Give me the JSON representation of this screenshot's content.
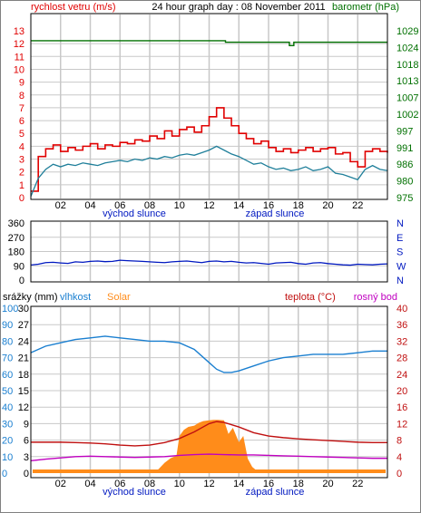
{
  "header": {
    "left_title": "rychlost vetru (m/s)",
    "center_title": "24 hour graph day : 08 November 2011",
    "right_title": "barometr (hPa)"
  },
  "colors": {
    "wind_gust": "#e00000",
    "wind_speed": "#1f7f9a",
    "pressure": "#007000",
    "direction": "#0018c0",
    "humidity": "#1a7fd0",
    "solar": "#ff8c1a",
    "temperature": "#c01010",
    "dewpoint": "#c000c0",
    "grid": "#c8c8c8",
    "axis_left_top": "#e00000",
    "axis_right_top": "#007000",
    "axis_left_bottom": "#1a7fd0",
    "axis_right_bottom": "#c01010"
  },
  "x_axis": {
    "hour_labels": [
      "02",
      "04",
      "06",
      "08",
      "10",
      "12",
      "14",
      "16",
      "18",
      "20",
      "22"
    ],
    "sunrise_label": "východ slunce",
    "sunset_label": "západ slunce"
  },
  "panel_bottom_header": {
    "rain_label": "srážky (mm)",
    "humidity_label": "vlhkost",
    "solar_label": "Solar",
    "temperature_label": "teplota (°C)",
    "dewpoint_label": "rosný bod"
  },
  "chart_data": [
    {
      "type": "line",
      "name": "wind-and-pressure",
      "xlabel": "",
      "xlim": [
        0,
        24
      ],
      "ylim_left": [
        0,
        13
      ],
      "ylim_right": [
        975,
        1029
      ],
      "left_ticks": [
        "0",
        "1",
        "2",
        "3",
        "4",
        "5",
        "6",
        "7",
        "8",
        "9",
        "10",
        "11",
        "12",
        "13"
      ],
      "right_ticks": [
        "975",
        "980",
        "986",
        "991",
        "997",
        "1002",
        "1007",
        "1013",
        "1018",
        "1024",
        "1029"
      ],
      "series": [
        {
          "key": "gust",
          "x": [
            0,
            0.5,
            1,
            1.5,
            2,
            2.5,
            3,
            3.5,
            4,
            4.5,
            5,
            5.5,
            6,
            6.5,
            7,
            7.5,
            8,
            8.5,
            9,
            9.5,
            10,
            10.5,
            11,
            11.5,
            12,
            12.5,
            13,
            13.5,
            14,
            14.5,
            15,
            15.5,
            16,
            16.5,
            17,
            17.5,
            18,
            18.5,
            19,
            19.5,
            20,
            20.5,
            21,
            21.5,
            22,
            22.5,
            23,
            23.5,
            24
          ],
          "values": [
            0.5,
            3.2,
            3.8,
            4.1,
            3.6,
            3.9,
            3.7,
            4.0,
            4.2,
            3.8,
            4.1,
            4.0,
            4.3,
            4.2,
            4.5,
            4.4,
            4.8,
            4.6,
            5.2,
            4.8,
            5.3,
            5.5,
            5.1,
            5.6,
            6.3,
            7.0,
            6.2,
            5.6,
            5.0,
            4.6,
            4.2,
            4.4,
            3.9,
            3.6,
            3.8,
            3.5,
            3.7,
            3.9,
            3.6,
            3.8,
            3.9,
            3.4,
            3.5,
            2.8,
            2.4,
            3.6,
            3.8,
            3.6,
            3.5
          ]
        },
        {
          "key": "speed",
          "x": [
            0,
            0.5,
            1,
            1.5,
            2,
            2.5,
            3,
            3.5,
            4,
            4.5,
            5,
            5.5,
            6,
            6.5,
            7,
            7.5,
            8,
            8.5,
            9,
            9.5,
            10,
            10.5,
            11,
            11.5,
            12,
            12.5,
            13,
            13.5,
            14,
            14.5,
            15,
            15.5,
            16,
            16.5,
            17,
            17.5,
            18,
            18.5,
            19,
            19.5,
            20,
            20.5,
            21,
            21.5,
            22,
            22.5,
            23,
            23.5,
            24
          ],
          "values": [
            0.1,
            1.5,
            2.2,
            2.6,
            2.4,
            2.6,
            2.5,
            2.7,
            2.6,
            2.5,
            2.7,
            2.8,
            2.9,
            2.8,
            3.0,
            2.9,
            3.1,
            3.0,
            3.2,
            3.1,
            3.3,
            3.4,
            3.3,
            3.5,
            3.7,
            4.0,
            3.7,
            3.4,
            3.2,
            2.9,
            2.6,
            2.7,
            2.4,
            2.2,
            2.3,
            2.1,
            2.2,
            2.4,
            2.1,
            2.2,
            2.4,
            1.9,
            1.8,
            1.6,
            1.4,
            2.2,
            2.5,
            2.2,
            2.1
          ]
        },
        {
          "key": "pressure",
          "x": [
            0,
            13,
            13.1,
            17.3,
            17.4,
            17.6,
            17.7,
            24
          ],
          "values": [
            1025.8,
            1025.8,
            1025.3,
            1025.3,
            1024.2,
            1024.2,
            1025.3,
            1025.3
          ]
        }
      ]
    },
    {
      "type": "scatter",
      "name": "wind-direction",
      "xlim": [
        0,
        24
      ],
      "ylim": [
        0,
        360
      ],
      "left_ticks": [
        "0",
        "90",
        "180",
        "270",
        "360"
      ],
      "right_labels": [
        "N",
        "W",
        "S",
        "E",
        "N"
      ],
      "series": [
        {
          "key": "direction",
          "x": [
            0,
            0.5,
            1,
            1.5,
            2,
            2.5,
            3,
            3.5,
            4,
            4.5,
            5,
            5.5,
            6,
            6.5,
            7,
            7.5,
            8,
            8.5,
            9,
            9.5,
            10,
            10.5,
            11,
            11.5,
            12,
            12.5,
            13,
            13.5,
            14,
            14.5,
            15,
            15.5,
            16,
            16.5,
            17,
            17.5,
            18,
            18.5,
            19,
            19.5,
            20,
            20.5,
            21,
            21.5,
            22,
            22.5,
            23,
            23.5,
            24
          ],
          "values": [
            95,
            100,
            110,
            112,
            108,
            105,
            115,
            112,
            118,
            120,
            116,
            118,
            125,
            122,
            120,
            118,
            115,
            112,
            110,
            115,
            118,
            120,
            115,
            110,
            118,
            120,
            115,
            118,
            112,
            108,
            110,
            105,
            100,
            108,
            110,
            112,
            104,
            100,
            108,
            110,
            104,
            100,
            96,
            94,
            100,
            98,
            96,
            100,
            102
          ]
        }
      ]
    },
    {
      "type": "line",
      "name": "rain-humidity-solar-temperature",
      "xlim": [
        0,
        24
      ],
      "ylim_left": [
        0,
        30
      ],
      "ylim_right": [
        0,
        40
      ],
      "left_ticks_rain": [
        "0",
        "3",
        "6",
        "9",
        "12",
        "15",
        "18",
        "21",
        "24",
        "27",
        "30"
      ],
      "left_ticks_humidity": [
        "0",
        "10",
        "20",
        "30",
        "40",
        "50",
        "60",
        "70",
        "80",
        "90",
        "100"
      ],
      "right_ticks": [
        "0",
        "4",
        "8",
        "12",
        "16",
        "20",
        "24",
        "28",
        "32",
        "36",
        "40"
      ],
      "series": [
        {
          "key": "humidity",
          "unit": "%",
          "x": [
            0,
            1,
            2,
            3,
            4,
            5,
            6,
            7,
            8,
            9,
            10,
            11,
            12,
            12.5,
            13,
            13.5,
            14,
            15,
            16,
            17,
            18,
            19,
            20,
            21,
            22,
            23,
            24
          ],
          "values": [
            73,
            77,
            79,
            81,
            82,
            83,
            82,
            81,
            80,
            80,
            79,
            75,
            67,
            63,
            61,
            61,
            62,
            65,
            68,
            70,
            71,
            72,
            72,
            72,
            73,
            74,
            74
          ]
        },
        {
          "key": "temperature",
          "unit": "°C",
          "x": [
            0,
            1,
            2,
            3,
            4,
            5,
            6,
            7,
            8,
            9,
            10,
            11,
            11.5,
            12,
            12.5,
            13,
            14,
            15,
            16,
            17,
            18,
            19,
            20,
            21,
            22,
            23,
            24
          ],
          "values": [
            7.5,
            7.5,
            7.5,
            7.4,
            7.3,
            7.1,
            6.8,
            6.6,
            6.8,
            7.4,
            8.4,
            10,
            11,
            12,
            12.5,
            12.3,
            11.2,
            9.8,
            9,
            8.6,
            8.3,
            8.1,
            7.9,
            7.7,
            7.5,
            7.4,
            7.4
          ]
        },
        {
          "key": "dewpoint",
          "unit": "°C",
          "x": [
            0,
            1,
            2,
            3,
            4,
            5,
            6,
            7,
            8,
            9,
            10,
            11,
            12,
            13,
            14,
            15,
            16,
            17,
            18,
            19,
            20,
            21,
            22,
            23,
            24
          ],
          "values": [
            3,
            3.4,
            3.7,
            4,
            4.1,
            4,
            3.9,
            3.8,
            3.9,
            4,
            4.3,
            4.5,
            4.6,
            4.5,
            4.4,
            4.4,
            4.3,
            4.2,
            4.1,
            4,
            3.9,
            3.8,
            3.7,
            3.6,
            3.6
          ]
        },
        {
          "key": "solar",
          "unit": "scaled",
          "x": [
            0,
            8.2,
            8.6,
            9,
            9.4,
            9.8,
            10,
            10.3,
            10.6,
            11,
            11.3,
            11.6,
            12,
            12.3,
            12.6,
            13,
            13.3,
            13.6,
            14,
            14.3,
            14.6,
            14.9,
            15.3,
            24
          ],
          "values": [
            0,
            0,
            1,
            2.5,
            3.6,
            4.2,
            9.0,
            10.5,
            11.2,
            11.5,
            12.2,
            12.6,
            12.8,
            12.9,
            12.9,
            12.8,
            9.5,
            11.0,
            7.5,
            9.0,
            3.5,
            1.5,
            0.3,
            0
          ]
        }
      ]
    }
  ]
}
